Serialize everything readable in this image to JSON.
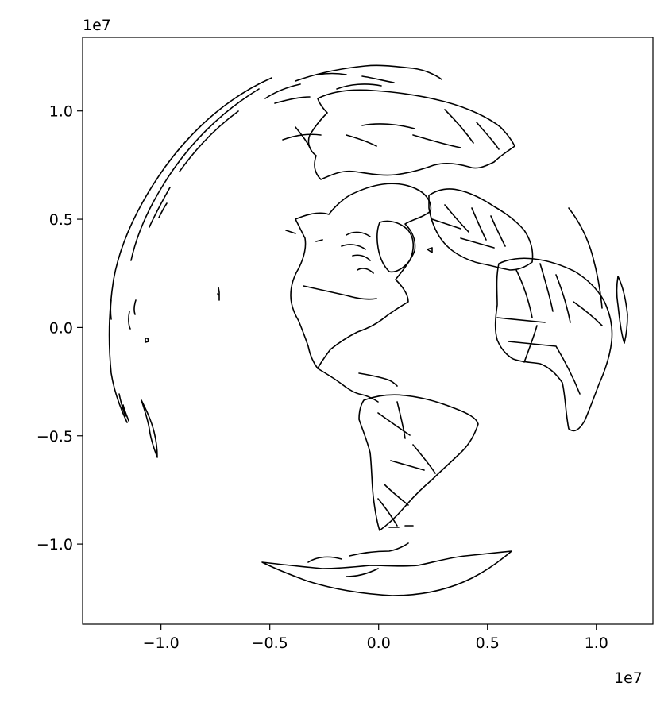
{
  "chart_data": {
    "type": "map",
    "projection": "orthographic",
    "title": "",
    "xlabel": "",
    "ylabel": "",
    "xlim": [
      -13600000,
      12600000
    ],
    "ylim": [
      -13700000,
      13400000
    ],
    "x_ticks": [
      -10000000,
      -5000000,
      0,
      5000000,
      10000000
    ],
    "x_tick_labels": [
      "−1.0",
      "−0.5",
      "0.0",
      "0.5",
      "1.0"
    ],
    "y_ticks": [
      10000000,
      5000000,
      0,
      -5000000,
      -10000000
    ],
    "y_tick_labels": [
      "1.0",
      "0.5",
      "0.0",
      "−0.5",
      "−1.0"
    ],
    "x_offset_label": "1e7",
    "y_offset_label": "1e7",
    "grid": false,
    "features": "country borders and coastlines, black outlines, no fill"
  }
}
